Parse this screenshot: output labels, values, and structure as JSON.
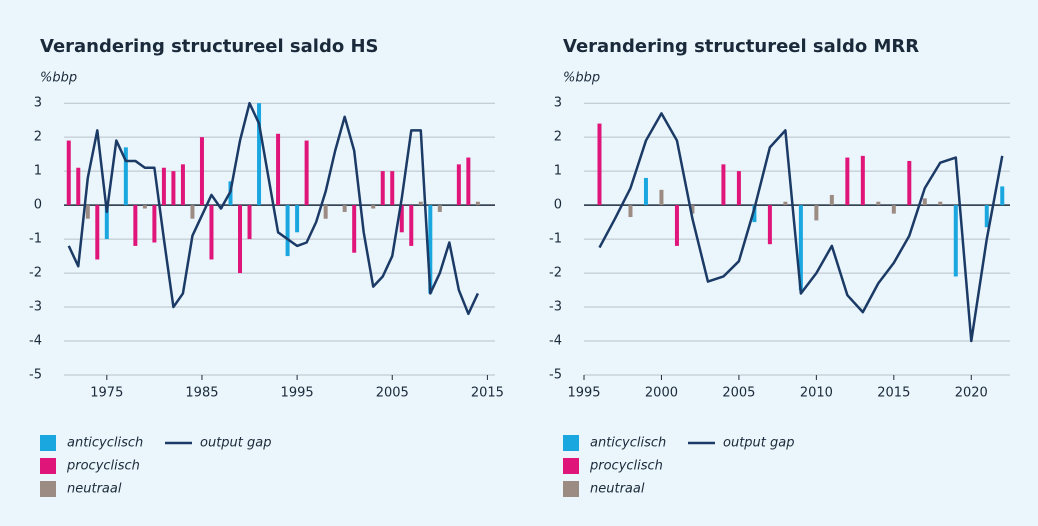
{
  "chart_data": [
    {
      "type": "combo",
      "title": "Verandering structureel saldo HS",
      "y_label": "%bbp",
      "x": [
        1971,
        1972,
        1973,
        1974,
        1975,
        1976,
        1977,
        1978,
        1979,
        1980,
        1981,
        1982,
        1983,
        1984,
        1985,
        1986,
        1987,
        1988,
        1989,
        1990,
        1991,
        1992,
        1993,
        1994,
        1995,
        1996,
        1997,
        1998,
        1999,
        2000,
        2001,
        2002,
        2003,
        2004,
        2005,
        2006,
        2007,
        2008,
        2009,
        2010,
        2011,
        2012,
        2013,
        2014
      ],
      "series": [
        {
          "name": "anticyclisch",
          "type": "bar",
          "color": "#1aa7e0",
          "values": [
            null,
            null,
            null,
            null,
            -1.0,
            null,
            1.7,
            null,
            null,
            null,
            null,
            null,
            null,
            null,
            null,
            null,
            null,
            0.7,
            null,
            null,
            3.0,
            null,
            null,
            -1.5,
            -0.8,
            null,
            null,
            null,
            null,
            null,
            null,
            null,
            null,
            null,
            null,
            null,
            null,
            null,
            -2.6,
            null,
            null,
            null,
            null,
            null
          ]
        },
        {
          "name": "procyclisch",
          "type": "bar",
          "color": "#e0157a",
          "values": [
            1.9,
            1.1,
            null,
            -1.6,
            null,
            null,
            null,
            -1.2,
            null,
            -1.1,
            1.1,
            1.0,
            1.2,
            null,
            2.0,
            -1.6,
            null,
            null,
            -2.0,
            -1.0,
            null,
            null,
            2.1,
            null,
            null,
            1.9,
            null,
            null,
            null,
            null,
            -1.4,
            null,
            null,
            1.0,
            1.0,
            -0.8,
            -1.2,
            null,
            null,
            null,
            null,
            1.2,
            1.4,
            null
          ]
        },
        {
          "name": "neutraal",
          "type": "bar",
          "color": "#9c8b83",
          "values": [
            null,
            null,
            -0.4,
            null,
            null,
            null,
            null,
            null,
            -0.1,
            null,
            null,
            null,
            null,
            -0.4,
            null,
            null,
            -0.1,
            null,
            null,
            null,
            null,
            null,
            null,
            null,
            null,
            null,
            null,
            -0.4,
            null,
            -0.2,
            null,
            null,
            -0.1,
            null,
            null,
            null,
            null,
            0.1,
            null,
            -0.2,
            null,
            null,
            null,
            0.1
          ]
        },
        {
          "name": "output gap",
          "type": "line",
          "color": "#1b3a66",
          "values": [
            -1.2,
            -1.8,
            0.8,
            2.2,
            -0.2,
            1.9,
            1.3,
            1.3,
            1.1,
            1.1,
            -1.0,
            -3.0,
            -2.6,
            -0.9,
            -0.3,
            0.3,
            -0.1,
            0.4,
            1.9,
            3.0,
            2.4,
            0.8,
            -0.8,
            -1.0,
            -1.2,
            -1.1,
            -0.5,
            0.4,
            1.6,
            2.6,
            1.6,
            -0.8,
            -2.4,
            -2.1,
            -1.5,
            0.2,
            2.2,
            2.2,
            -2.6,
            -2.0,
            -1.1,
            -2.5,
            -3.2,
            -2.6
          ]
        }
      ],
      "xlim": [
        1970.5,
        2015.8
      ],
      "xticks": [
        1975,
        1985,
        1995,
        2005,
        2015
      ],
      "ylim": [
        -5,
        3.3
      ],
      "yticks": [
        -5,
        -4,
        -3,
        -2,
        -1,
        0,
        1,
        2,
        3
      ],
      "grid": true
    },
    {
      "type": "combo",
      "title": "Verandering structureel saldo MRR",
      "y_label": "%bbp",
      "x": [
        1996,
        1997,
        1998,
        1999,
        2000,
        2001,
        2002,
        2003,
        2004,
        2005,
        2006,
        2007,
        2008,
        2009,
        2010,
        2011,
        2012,
        2013,
        2014,
        2015,
        2016,
        2017,
        2018,
        2019,
        2020,
        2021,
        2022
      ],
      "series": [
        {
          "name": "anticyclisch",
          "type": "bar",
          "color": "#1aa7e0",
          "values": [
            null,
            null,
            null,
            0.8,
            null,
            null,
            null,
            null,
            null,
            null,
            -0.5,
            null,
            null,
            -2.5,
            null,
            null,
            null,
            null,
            null,
            null,
            null,
            null,
            null,
            -2.1,
            null,
            -0.65,
            0.55
          ]
        },
        {
          "name": "procyclisch",
          "type": "bar",
          "color": "#e0157a",
          "values": [
            2.4,
            null,
            null,
            null,
            null,
            -1.2,
            null,
            null,
            1.2,
            1.0,
            null,
            -1.15,
            null,
            null,
            null,
            null,
            1.4,
            1.45,
            null,
            null,
            1.3,
            null,
            null,
            null,
            null,
            null,
            null
          ]
        },
        {
          "name": "neutraal",
          "type": "bar",
          "color": "#9c8b83",
          "values": [
            null,
            null,
            -0.35,
            null,
            0.45,
            null,
            -0.25,
            null,
            null,
            null,
            null,
            null,
            0.1,
            null,
            -0.45,
            0.3,
            null,
            null,
            0.1,
            -0.25,
            null,
            0.2,
            0.1,
            null,
            null,
            null,
            null
          ]
        },
        {
          "name": "output gap",
          "type": "line",
          "color": "#1b3a66",
          "values": [
            -1.25,
            -0.4,
            0.5,
            1.9,
            2.7,
            1.9,
            -0.4,
            -2.25,
            -2.1,
            -1.65,
            -0.1,
            1.7,
            2.2,
            -2.6,
            -2.0,
            -1.2,
            -2.65,
            -3.15,
            -2.3,
            -1.7,
            -0.9,
            0.5,
            1.25,
            1.4,
            -4.0,
            -1.0,
            1.45
          ]
        }
      ],
      "xlim": [
        1995,
        2022.5
      ],
      "xticks": [
        1995,
        2000,
        2005,
        2010,
        2015,
        2020
      ],
      "ylim": [
        -5,
        3.3
      ],
      "yticks": [
        -5,
        -4,
        -3,
        -2,
        -1,
        0,
        1,
        2,
        3
      ],
      "grid": true
    }
  ]
}
